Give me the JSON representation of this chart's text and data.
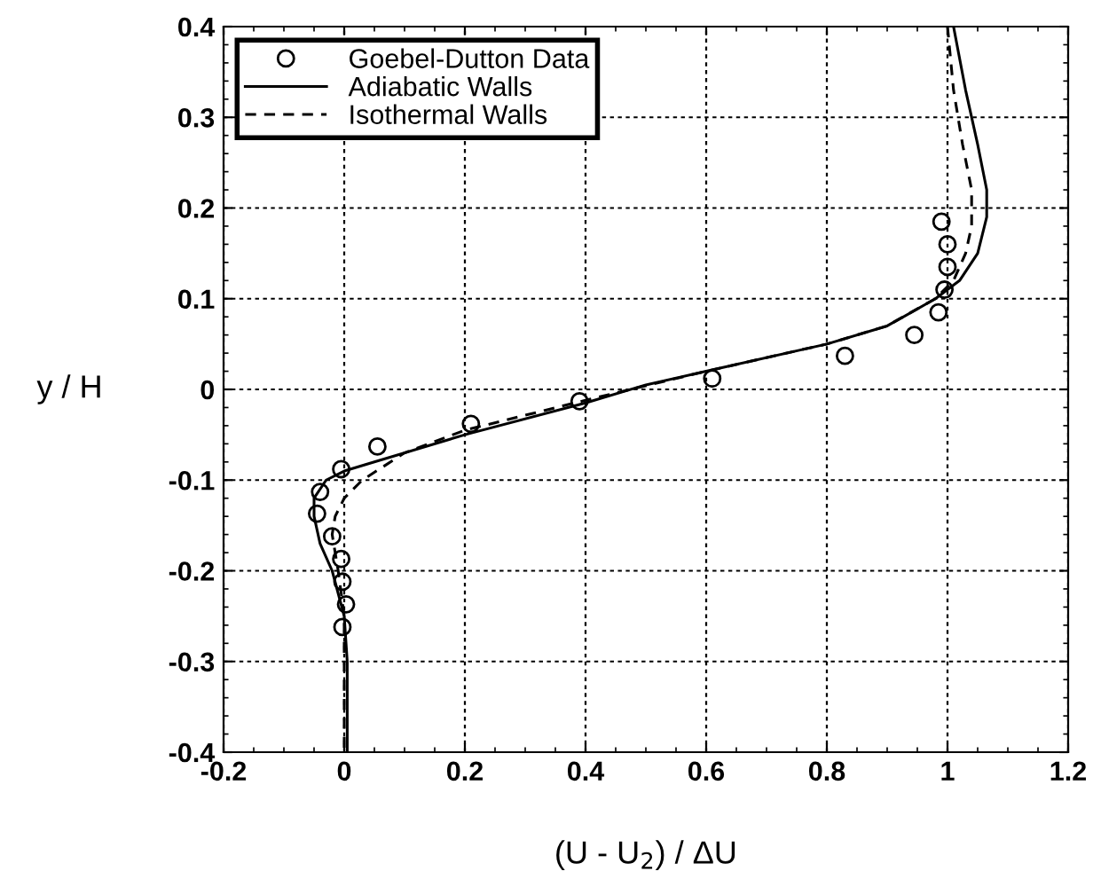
{
  "chart_data": {
    "type": "line",
    "xlabel": "(U - U$_{2}$) / ΔU",
    "ylabel": "y / H",
    "xlim": [
      -0.2,
      1.2
    ],
    "ylim": [
      -0.4,
      0.4
    ],
    "xticks": [
      -0.2,
      0,
      0.2,
      0.4,
      0.6,
      0.8,
      1,
      1.2
    ],
    "yticks": [
      -0.4,
      -0.3,
      -0.2,
      -0.1,
      0,
      0.1,
      0.2,
      0.3,
      0.4
    ],
    "grid": true,
    "legend": "top left",
    "series": [
      {
        "name": "Goebel-Dutton Data",
        "type": "scatter",
        "marker": "circle",
        "color": "#000000",
        "x": [
          0.99,
          1.0,
          1.0,
          0.995,
          0.985,
          0.945,
          0.83,
          0.61,
          0.39,
          0.21,
          0.055,
          -0.005,
          -0.04,
          -0.045,
          -0.02,
          -0.005,
          -0.003,
          0.003,
          -0.003
        ],
        "values": [
          0.185,
          0.16,
          0.135,
          0.11,
          0.085,
          0.06,
          0.037,
          0.012,
          -0.013,
          -0.038,
          -0.063,
          -0.088,
          -0.113,
          -0.137,
          -0.162,
          -0.187,
          -0.212,
          -0.237,
          -0.262
        ]
      },
      {
        "name": "Adiabatic Walls",
        "line_style": "solid",
        "color": "#000000",
        "x": [
          1.01,
          1.03,
          1.05,
          1.065,
          1.065,
          1.05,
          1.02,
          0.98,
          0.9,
          0.8,
          0.6,
          0.5,
          0.4,
          0.2,
          0.05,
          0.0,
          -0.03,
          -0.05,
          -0.05,
          -0.04,
          -0.02,
          0.0,
          0.005,
          0.005
        ],
        "values": [
          0.4,
          0.33,
          0.27,
          0.22,
          0.19,
          0.15,
          0.12,
          0.1,
          0.07,
          0.05,
          0.02,
          0.005,
          -0.015,
          -0.05,
          -0.08,
          -0.09,
          -0.1,
          -0.12,
          -0.14,
          -0.17,
          -0.2,
          -0.25,
          -0.3,
          -0.4
        ]
      },
      {
        "name": "Isothermal Walls",
        "line_style": "dashed",
        "color": "#000000",
        "x": [
          1.0,
          1.01,
          1.025,
          1.04,
          1.04,
          1.03,
          1.01,
          0.98,
          0.9,
          0.8,
          0.6,
          0.4,
          0.2,
          0.1,
          0.03,
          0.0,
          -0.015,
          -0.02,
          -0.01,
          0.0,
          0.0,
          0.0
        ],
        "values": [
          0.4,
          0.33,
          0.27,
          0.22,
          0.18,
          0.15,
          0.12,
          0.1,
          0.07,
          0.05,
          0.02,
          -0.012,
          -0.045,
          -0.07,
          -0.1,
          -0.12,
          -0.14,
          -0.16,
          -0.2,
          -0.25,
          -0.3,
          -0.4
        ]
      }
    ]
  }
}
